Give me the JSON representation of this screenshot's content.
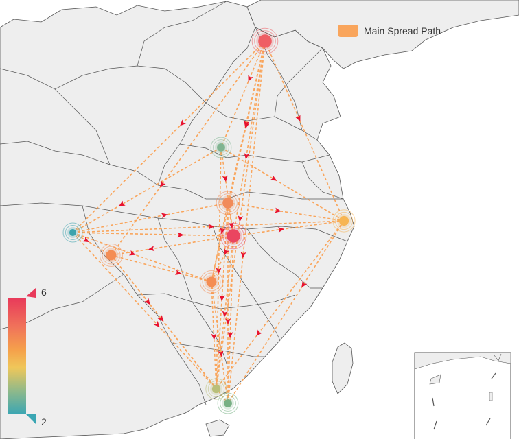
{
  "legend": {
    "label": "Main Spread Path",
    "color": "#f9a55c"
  },
  "visual_map": {
    "max": "6",
    "min": "2",
    "colors": [
      "#e8395a",
      "#f0735a",
      "#f5a14b",
      "#efc75a",
      "#8fb98a",
      "#3aa6b3"
    ]
  },
  "colors": {
    "land": "#eeeeee",
    "border": "#555555",
    "path": "#f9a55c",
    "arrow": "#e8132f"
  },
  "nodes": [
    {
      "id": "n0",
      "value": 6,
      "color": "#ef5e64"
    },
    {
      "id": "n1",
      "value": 3,
      "color": "#7fb491"
    },
    {
      "id": "n2",
      "value": 2.3,
      "color": "#3ba3ad"
    },
    {
      "id": "n3",
      "value": 4.5,
      "color": "#f18a59"
    },
    {
      "id": "n4",
      "value": 6,
      "color": "#ea4560"
    },
    {
      "id": "n5",
      "value": 4.2,
      "color": "#f48d54"
    },
    {
      "id": "n6",
      "value": 4.2,
      "color": "#f48d54"
    },
    {
      "id": "n7",
      "value": 3.9,
      "color": "#f7b553"
    },
    {
      "id": "n8",
      "value": 3.2,
      "color": "#b9bf79"
    },
    {
      "id": "n9",
      "value": 3,
      "color": "#77b084"
    }
  ],
  "routes": [
    [
      "n0",
      "n1"
    ],
    [
      "n0",
      "n2"
    ],
    [
      "n0",
      "n3"
    ],
    [
      "n0",
      "n4"
    ],
    [
      "n0",
      "n5"
    ],
    [
      "n0",
      "n6"
    ],
    [
      "n0",
      "n7"
    ],
    [
      "n0",
      "n8"
    ],
    [
      "n0",
      "n9"
    ],
    [
      "n1",
      "n2"
    ],
    [
      "n1",
      "n4"
    ],
    [
      "n1",
      "n7"
    ],
    [
      "n1",
      "n8"
    ],
    [
      "n2",
      "n3"
    ],
    [
      "n2",
      "n4"
    ],
    [
      "n2",
      "n5"
    ],
    [
      "n2",
      "n6"
    ],
    [
      "n2",
      "n7"
    ],
    [
      "n2",
      "n8"
    ],
    [
      "n3",
      "n4"
    ],
    [
      "n3",
      "n6"
    ],
    [
      "n3",
      "n7"
    ],
    [
      "n3",
      "n8"
    ],
    [
      "n3",
      "n9"
    ],
    [
      "n4",
      "n5"
    ],
    [
      "n4",
      "n6"
    ],
    [
      "n4",
      "n7"
    ],
    [
      "n4",
      "n8"
    ],
    [
      "n4",
      "n9"
    ],
    [
      "n5",
      "n6"
    ],
    [
      "n5",
      "n8"
    ],
    [
      "n5",
      "n9"
    ],
    [
      "n6",
      "n8"
    ],
    [
      "n6",
      "n9"
    ],
    [
      "n7",
      "n8"
    ],
    [
      "n7",
      "n9"
    ]
  ]
}
